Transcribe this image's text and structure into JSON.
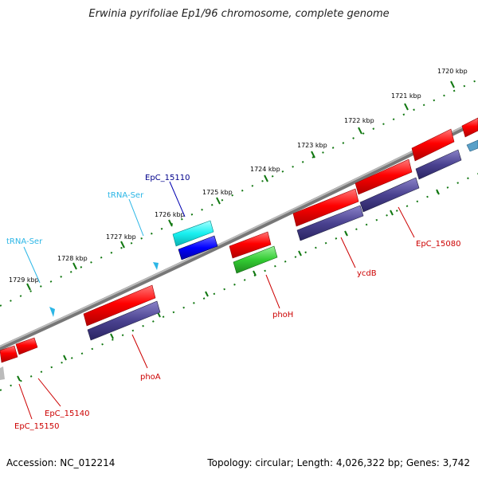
{
  "title": "Erwinia pyrifoliae Ep1/96 chromosome, complete genome",
  "footer": {
    "accession": "Accession: NC_012214",
    "summary": "Topology: circular; Length: 4,026,322 bp; Genes: 3,742"
  },
  "ruler": {
    "ticks": [
      "1720 kbp",
      "1721 kbp",
      "1722 kbp",
      "1723 kbp",
      "1724 kbp",
      "1725 kbp",
      "1726 kbp",
      "1727 kbp",
      "1728 kbp",
      "1729 kbp"
    ]
  },
  "features": [
    {
      "label": "EpC_15110",
      "color": "#00008b"
    },
    {
      "label": "tRNA-Ser",
      "color": "#2bb6e6"
    },
    {
      "label": "tRNA-Ser",
      "color": "#2bb6e6"
    },
    {
      "label": "EpC_15080",
      "color": "#cc0000"
    },
    {
      "label": "ycdB",
      "color": "#cc0000"
    },
    {
      "label": "phoH",
      "color": "#cc0000"
    },
    {
      "label": "phoA",
      "color": "#cc0000"
    },
    {
      "label": "EpC_15140",
      "color": "#cc0000"
    },
    {
      "label": "EpC_15150",
      "color": "#cc0000"
    }
  ],
  "colors": {
    "cds_red": "#ff0000",
    "gene_navy": "#4a4290",
    "cyan": "#19f0f0",
    "blue": "#0000ff",
    "green": "#33cc33",
    "backbone": "#888888",
    "ruler_green": "#117711"
  }
}
